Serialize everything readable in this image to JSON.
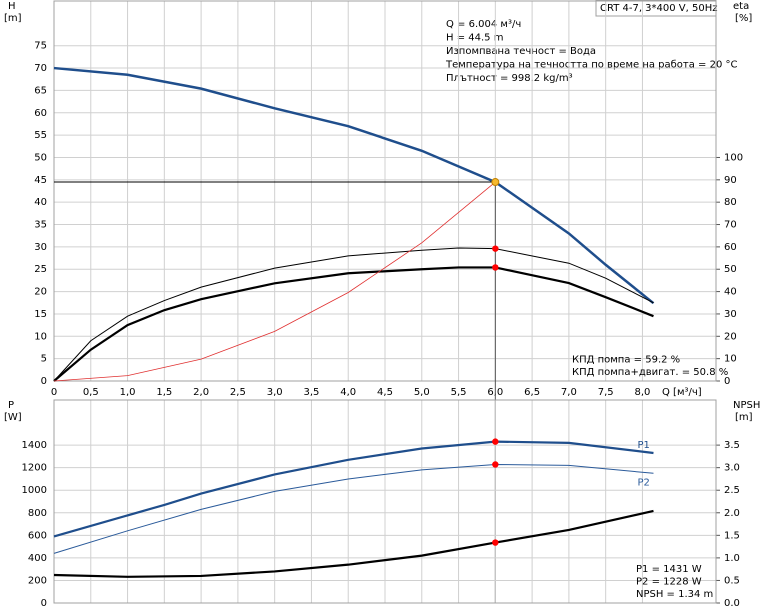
{
  "model": "CRT 4-7, 3*400 V, 50Hz",
  "info": [
    "Q = 6.004 м³/ч",
    "H = 44.5 m",
    "Изпомпвана течност = Вода",
    "Температура на течността по време на работа = 20 °C",
    "Плътност = 998.2 kg/m³"
  ],
  "chart_data": [
    {
      "type": "line",
      "ylabel": "H",
      "yunit": "[m]",
      "y2label": "eta",
      "y2unit": "[%]",
      "xlabel": "Q [м³/ч]",
      "xlim": [
        0,
        9
      ],
      "ylim": [
        0,
        85
      ],
      "y2lim": [
        0,
        170
      ],
      "xticks": [
        0,
        {
          "value": 0.5,
          "label": "0,5"
        },
        {
          "value": 1.0,
          "label": "1,0"
        },
        {
          "value": 1.5,
          "label": "1,5"
        },
        {
          "value": 2.0,
          "label": "2,0"
        },
        {
          "value": 2.5,
          "label": "2,5"
        },
        {
          "value": 3.0,
          "label": "3,0"
        },
        {
          "value": 3.5,
          "label": "3,5"
        },
        {
          "value": 4.0,
          "label": "4,0"
        },
        {
          "value": 4.5,
          "label": "4,5"
        },
        {
          "value": 5.0,
          "label": "5,0"
        },
        {
          "value": 5.5,
          "label": "5,5"
        },
        {
          "value": 6.0,
          "label": "6,0"
        },
        {
          "value": 6.5,
          "label": "6,5"
        },
        {
          "value": 7.0,
          "label": "7,0"
        },
        {
          "value": 7.5,
          "label": "7,5"
        },
        {
          "value": 8.0,
          "label": "8,0"
        }
      ],
      "yticks": [
        0,
        5,
        10,
        15,
        20,
        25,
        30,
        35,
        40,
        45,
        50,
        55,
        60,
        65,
        70,
        75
      ],
      "y2ticks": [
        0,
        10,
        20,
        30,
        40,
        50,
        60,
        70,
        80,
        90,
        100
      ],
      "grid": true,
      "operating_point": {
        "x": 6.0,
        "y": 44.5,
        "color": "#f5b82e"
      },
      "series": [
        {
          "color": "#1f4e8c",
          "width": 2.5,
          "x": [
            0,
            1,
            2,
            3,
            4,
            5,
            6,
            7,
            7.5,
            8.15
          ],
          "values": [
            70,
            68.5,
            65.4,
            61,
            57,
            51.5,
            44.5,
            33,
            26,
            17.4
          ]
        },
        {
          "color": "#000000",
          "width": 1,
          "axis": "y2",
          "marker_color": "#ff0000",
          "x": [
            0,
            0.5,
            1,
            1.5,
            2,
            3,
            4,
            5,
            5.5,
            6,
            7,
            7.5,
            8.15
          ],
          "values": [
            0,
            18,
            29,
            36,
            42,
            50.5,
            56,
            58.5,
            59.5,
            59.2,
            52.7,
            46,
            35
          ]
        },
        {
          "color": "#000000",
          "width": 2.2,
          "axis": "y2",
          "marker_color": "#ff0000",
          "x": [
            0,
            0.5,
            1,
            1.5,
            2,
            3,
            4,
            5,
            5.5,
            6,
            7,
            7.5,
            8.15
          ],
          "values": [
            0,
            14,
            25,
            31.7,
            36.6,
            43.7,
            48.2,
            50,
            50.8,
            50.8,
            43.8,
            37.5,
            29
          ]
        },
        {
          "color": "#e03030",
          "width": 0.8,
          "x": [
            0,
            1,
            2,
            3,
            4,
            5,
            6
          ],
          "values": [
            0,
            1.2,
            4.9,
            11.1,
            19.8,
            30.9,
            44.5
          ]
        }
      ],
      "notes": [
        "КПД помпа = 59.2 %",
        "КПД помпа+двигат. = 50.8 %"
      ]
    },
    {
      "type": "line",
      "ylabel": "P",
      "yunit": "[W]",
      "y2label": "NPSH",
      "y2unit": "[m]",
      "xlim": [
        0,
        9
      ],
      "ylim": [
        0,
        1800
      ],
      "y2lim": [
        0,
        4.5
      ],
      "xticks": [
        0,
        0.5,
        1,
        1.5,
        2,
        2.5,
        3,
        3.5,
        4,
        4.5,
        5,
        5.5,
        6,
        6.5,
        7,
        7.5,
        8
      ],
      "yticks": [
        0,
        200,
        400,
        600,
        800,
        1000,
        1200,
        1400
      ],
      "y2ticks": [
        {
          "value": 0,
          "label": "0.0"
        },
        {
          "value": 0.5,
          "label": "0.5"
        },
        {
          "value": 1.0,
          "label": "1.0"
        },
        {
          "value": 1.5,
          "label": "1.5"
        },
        {
          "value": 2.0,
          "label": "2.0"
        },
        {
          "value": 2.5,
          "label": "2.5"
        },
        {
          "value": 3.0,
          "label": "3.0"
        },
        {
          "value": 3.5,
          "label": "3.5"
        }
      ],
      "grid": true,
      "series": [
        {
          "name": "P1",
          "color": "#1f4e8c",
          "width": 2.2,
          "marker_color": "#ff0000",
          "x": [
            0,
            1.5,
            2,
            3,
            4,
            5,
            6,
            7,
            8.15
          ],
          "values": [
            590,
            870,
            970,
            1140,
            1270,
            1370,
            1431,
            1420,
            1330
          ]
        },
        {
          "name": "P2",
          "color": "#2a5a9a",
          "width": 1,
          "marker_color": "#ff0000",
          "x": [
            0,
            1,
            2,
            3,
            4,
            5,
            6,
            7,
            8.15
          ],
          "values": [
            440,
            640,
            830,
            990,
            1100,
            1180,
            1228,
            1220,
            1150
          ]
        },
        {
          "color": "#000000",
          "width": 2.2,
          "axis": "y2",
          "marker_color": "#ff0000",
          "x": [
            0,
            1,
            2,
            3,
            4,
            5,
            6,
            7,
            8.15
          ],
          "values": [
            0.62,
            0.58,
            0.6,
            0.7,
            0.85,
            1.05,
            1.34,
            1.62,
            2.04
          ]
        }
      ],
      "notes": [
        "P1 = 1431 W",
        "P2 = 1228 W",
        "NPSH = 1.34 m"
      ]
    }
  ]
}
